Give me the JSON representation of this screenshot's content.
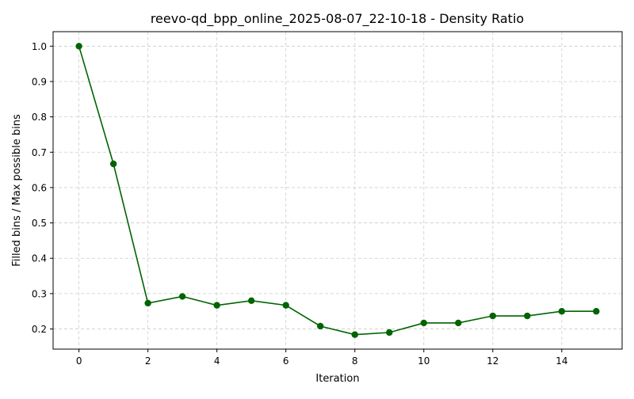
{
  "chart_data": {
    "type": "line",
    "title": "reevo-qd_bpp_online_2025-08-07_22-10-18 - Density Ratio",
    "xlabel": "Iteration",
    "ylabel": "Filled bins / Max possible bins",
    "xlim": [
      -0.75,
      15.75
    ],
    "ylim": [
      0.143,
      1.041
    ],
    "xticks": [
      0,
      2,
      4,
      6,
      8,
      10,
      12,
      14
    ],
    "yticks": [
      0.2,
      0.3,
      0.4,
      0.5,
      0.6,
      0.7,
      0.8,
      0.9,
      1.0
    ],
    "ytick_labels": [
      "0.2",
      "0.3",
      "0.4",
      "0.5",
      "0.6",
      "0.7",
      "0.8",
      "0.9",
      "1.0"
    ],
    "grid": true,
    "series": [
      {
        "color": "#006400",
        "x": [
          0,
          1,
          2,
          3,
          4,
          5,
          6,
          7,
          8,
          9,
          10,
          11,
          12,
          13,
          14,
          15
        ],
        "y": [
          1.0,
          0.667,
          0.273,
          0.292,
          0.267,
          0.28,
          0.267,
          0.208,
          0.184,
          0.19,
          0.217,
          0.217,
          0.237,
          0.237,
          0.25,
          0.25
        ]
      }
    ]
  }
}
